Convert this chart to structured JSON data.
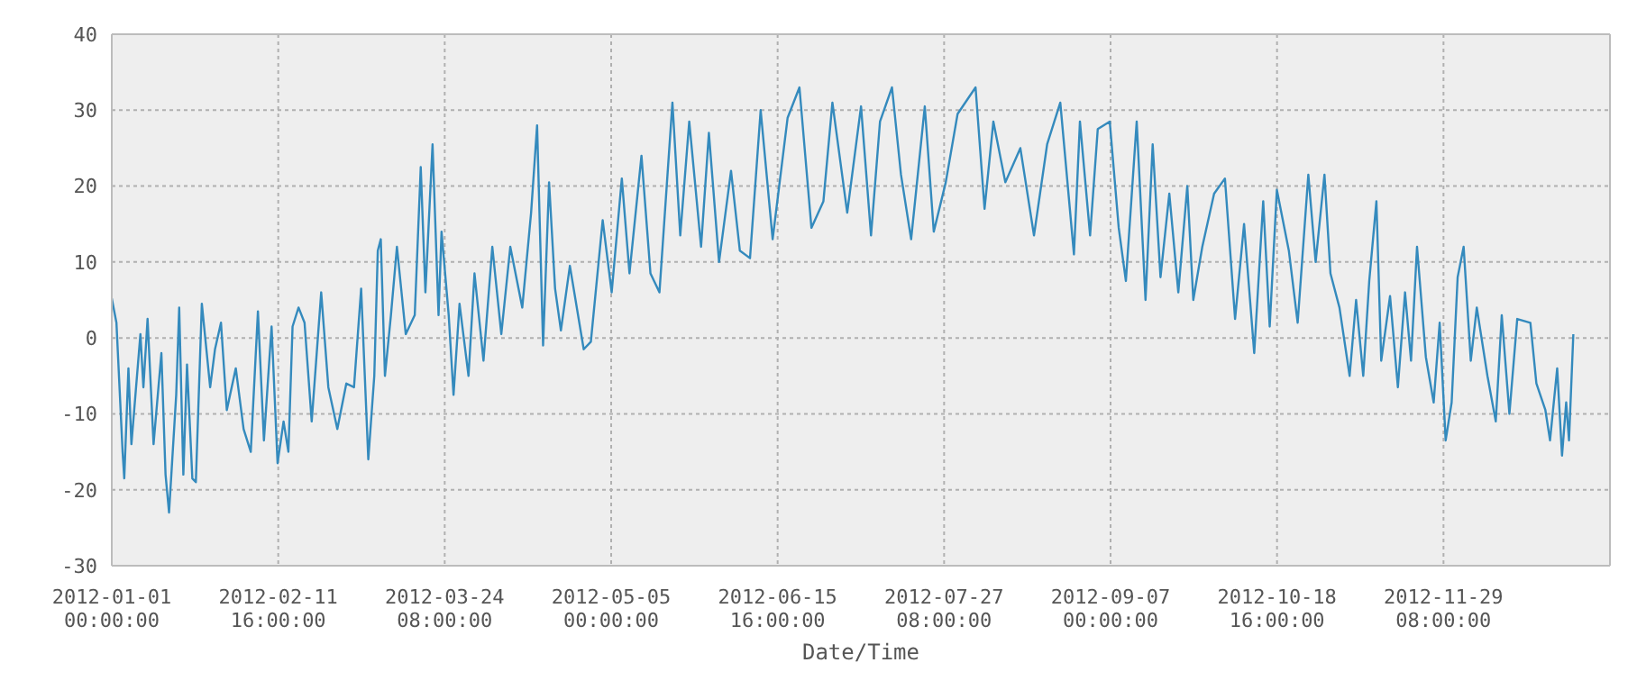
{
  "chart_data": {
    "type": "line",
    "xlabel": "Date/Time",
    "x": [
      "2012-01-01T00:00",
      "2012-01-02T04:00",
      "2012-01-03T17:00",
      "2012-01-04T03:00",
      "2012-01-05T04:00",
      "2012-01-05T22:00",
      "2012-01-08T04:00",
      "2012-01-08T22:00",
      "2012-01-09T23:00",
      "2012-01-11T11:00",
      "2012-01-13T10:00",
      "2012-01-14T11:00",
      "2012-01-15T08:00",
      "2012-01-17T03:00",
      "2012-01-17T21:00",
      "2012-01-18T22:00",
      "2012-01-19T20:00",
      "2012-01-21T04:00",
      "2012-01-22T01:00",
      "2012-01-23T13:00",
      "2012-01-25T15:00",
      "2012-01-26T20:00",
      "2012-01-28T08:00",
      "2012-01-29T19:00",
      "2012-02-01T01:00",
      "2012-02-03T00:00",
      "2012-02-04T19:00",
      "2012-02-06T14:00",
      "2012-02-08T02:00",
      "2012-02-10T00:00",
      "2012-02-11T12:00",
      "2012-02-13T00:00",
      "2012-02-14T05:00",
      "2012-02-15T06:00",
      "2012-02-16T18:00",
      "2012-02-18T06:00",
      "2012-02-20T01:00",
      "2012-02-22T10:00",
      "2012-02-24T05:00",
      "2012-02-26T11:00",
      "2012-02-28T17:00",
      "2012-03-01T15:00",
      "2012-03-03T10:00",
      "2012-03-05T05:00",
      "2012-03-06T17:00",
      "2012-03-07T14:00",
      "2012-03-08T08:00",
      "2012-03-09T09:00",
      "2012-03-10T21:00",
      "2012-03-12T09:00",
      "2012-03-14T14:00",
      "2012-03-16T20:00",
      "2012-03-18T08:00",
      "2012-03-19T12:00",
      "2012-03-21T07:00",
      "2012-03-22T19:00",
      "2012-03-23T13:00",
      "2012-03-25T08:00",
      "2012-03-26T13:00",
      "2012-03-28T01:00",
      "2012-03-30T07:00",
      "2012-03-31T19:00",
      "2012-04-03T01:00",
      "2012-04-05T06:00",
      "2012-04-07T12:00",
      "2012-04-09T18:00",
      "2012-04-12T18:00",
      "2012-04-14T23:00",
      "2012-04-16T11:00",
      "2012-04-17T23:00",
      "2012-04-19T11:00",
      "2012-04-20T23:00",
      "2012-04-22T10:00",
      "2012-04-24T16:00",
      "2012-04-28T03:00",
      "2012-04-29T22:00",
      "2012-05-02T21:00",
      "2012-05-05T03:00",
      "2012-05-07T16:00",
      "2012-05-09T14:00",
      "2012-05-12T14:00",
      "2012-05-14T20:00",
      "2012-05-17T02:00",
      "2012-05-20T08:00",
      "2012-05-22T07:00",
      "2012-05-24T13:00",
      "2012-05-27T12:00",
      "2012-05-29T11:00",
      "2012-06-01T00:00",
      "2012-06-04T00:00",
      "2012-06-06T05:00",
      "2012-06-08T18:00",
      "2012-06-11T10:00",
      "2012-06-14T10:00",
      "2012-06-18T04:00",
      "2012-06-21T03:00",
      "2012-06-24T03:00",
      "2012-06-27T03:00",
      "2012-06-29T09:00",
      "2012-07-03T02:00",
      "2012-07-06T13:00",
      "2012-07-09T01:00",
      "2012-07-11T07:00",
      "2012-07-14T07:00",
      "2012-07-16T13:00",
      "2012-07-19T02:00",
      "2012-07-22T12:00",
      "2012-07-24T18:00",
      "2012-07-27T18:00",
      "2012-07-30T17:00",
      "2012-08-04T05:00",
      "2012-08-06T11:00",
      "2012-08-08T16:00",
      "2012-08-11T16:00",
      "2012-08-15T10:00",
      "2012-08-18T20:00",
      "2012-08-22T03:00",
      "2012-08-25T10:00",
      "2012-08-28T20:00",
      "2012-08-30T08:00",
      "2012-09-01T21:00",
      "2012-09-03T19:00",
      "2012-09-06T19:00",
      "2012-09-09T01:00",
      "2012-09-10T20:00",
      "2012-09-13T13:00",
      "2012-09-15T18:00",
      "2012-09-17T13:00",
      "2012-09-19T12:00",
      "2012-09-21T17:00",
      "2012-09-23T23:00",
      "2012-09-26T05:00",
      "2012-09-27T17:00",
      "2012-09-29T23:00",
      "2012-10-02T22:00",
      "2012-10-05T15:00",
      "2012-10-08T04:00",
      "2012-10-10T10:00",
      "2012-10-12T23:00",
      "2012-10-15T05:00",
      "2012-10-16T20:00",
      "2012-10-18T15:00",
      "2012-10-21T15:00",
      "2012-10-23T20:00",
      "2012-10-26T12:00",
      "2012-10-28T08:00",
      "2012-10-30T13:00",
      "2012-11-01T01:00",
      "2012-11-03T07:00",
      "2012-11-05T20:00",
      "2012-11-07T11:00",
      "2012-11-09T06:00",
      "2012-11-10T18:00",
      "2012-11-12T13:00",
      "2012-11-13T18:00",
      "2012-11-15T23:00",
      "2012-11-17T22:00",
      "2012-11-19T17:00",
      "2012-11-21T05:00",
      "2012-11-22T17:00",
      "2012-11-24T22:00",
      "2012-11-26T21:00",
      "2012-11-28T09:00",
      "2012-11-29T21:00",
      "2012-12-01T09:00",
      "2012-12-02T21:00",
      "2012-12-04T09:00",
      "2012-12-06T04:00",
      "2012-12-07T16:00",
      "2012-12-10T08:00",
      "2012-12-12T10:00",
      "2012-12-13T22:00",
      "2012-12-15T20:00",
      "2012-12-17T19:00",
      "2012-12-21T02:00",
      "2012-12-22T14:00",
      "2012-12-24T20:00",
      "2012-12-26T00:00",
      "2012-12-27T19:00",
      "2012-12-29T00:00",
      "2012-12-30T01:00",
      "2012-12-30T18:00",
      "2012-12-31T20:00"
    ],
    "series": [
      {
        "color": "#348abd",
        "values": [
          5.2,
          2,
          -15,
          -18.5,
          -4,
          -14,
          0.5,
          -6.5,
          2.5,
          -14,
          -2,
          -18,
          -23,
          -7.5,
          4,
          -18,
          -3.5,
          -18.5,
          -19,
          4.5,
          -6.5,
          -1.5,
          2,
          -9.5,
          -4,
          -12,
          -15,
          3.5,
          -13.5,
          1.5,
          -16.5,
          -11,
          -15,
          1.5,
          4,
          2,
          -11,
          6,
          -6.5,
          -12,
          -6,
          -6.5,
          6.5,
          -16,
          -5,
          11.5,
          13,
          -5,
          3,
          12,
          0.5,
          3,
          22.5,
          6,
          25.5,
          3,
          14,
          3,
          -7.5,
          4.5,
          -5,
          8.5,
          -3,
          12,
          0.5,
          12,
          4,
          16.5,
          28,
          -1,
          20.5,
          6.5,
          1,
          9.5,
          -1.5,
          -0.5,
          15.5,
          6,
          21,
          8.5,
          24,
          8.5,
          6,
          31,
          13.5,
          28.5,
          12,
          27,
          10,
          22,
          11.5,
          10.5,
          30,
          13,
          29,
          33,
          14.5,
          18,
          31,
          16.5,
          30.5,
          13.5,
          28.5,
          33,
          21.5,
          13,
          30.5,
          14,
          20.5,
          29.5,
          33,
          17,
          28.5,
          20.5,
          25,
          13.5,
          25.5,
          31,
          11,
          28.5,
          13.5,
          27.5,
          28.5,
          14.5,
          7.5,
          28.5,
          5,
          25.5,
          8,
          19,
          6,
          20,
          5,
          12,
          19,
          21,
          2.5,
          15,
          -2,
          18,
          1.5,
          19.5,
          11.5,
          2,
          21.5,
          10,
          21.5,
          8.5,
          4,
          -5,
          5,
          -5,
          7.5,
          18,
          -3,
          5.5,
          -6.5,
          6,
          -3,
          12,
          -2.5,
          -8.5,
          2,
          -13.5,
          -8.5,
          8,
          12,
          -3,
          4,
          -5,
          -11,
          3,
          -10,
          2.5,
          2,
          -6,
          -9.5,
          -13.5,
          -4,
          -15.5,
          -8.5,
          -13.5,
          0.5
        ]
      }
    ],
    "xlim": [
      "2012-01-01T00:00",
      "2013-01-10T00:00"
    ],
    "xticks": [
      {
        "value": "2012-01-01T00:00",
        "label": "2012-01-01 00:00:00"
      },
      {
        "value": "2012-02-11T16:00",
        "label": "2012-02-11 16:00:00"
      },
      {
        "value": "2012-03-24T08:00",
        "label": "2012-03-24 08:00:00"
      },
      {
        "value": "2012-05-05T00:00",
        "label": "2012-05-05 00:00:00"
      },
      {
        "value": "2012-06-15T16:00",
        "label": "2012-06-15 16:00:00"
      },
      {
        "value": "2012-07-27T08:00",
        "label": "2012-07-27 08:00:00"
      },
      {
        "value": "2012-09-07T00:00",
        "label": "2012-09-07 00:00:00"
      },
      {
        "value": "2012-10-18T16:00",
        "label": "2012-10-18 16:00:00"
      },
      {
        "value": "2012-11-29T08:00",
        "label": "2012-11-29 08:00:00"
      }
    ],
    "ylim": [
      -30,
      40
    ],
    "yticks": [
      -30,
      -20,
      -10,
      0,
      10,
      20,
      30,
      40
    ],
    "grid": true
  }
}
